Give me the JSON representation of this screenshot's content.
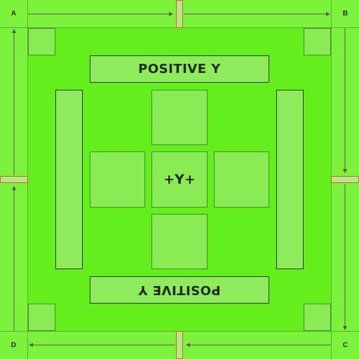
{
  "corners": {
    "a": "A",
    "b": "B",
    "c": "C",
    "d": "D"
  },
  "banner_top": "POSITIVE Y",
  "banner_bottom": "POSITIVE Y",
  "center_label": "+Y+",
  "colors": {
    "background": "#65ee1d",
    "frame": "#7cf23c",
    "tile": "#89ec55",
    "notch_border": "#d2602a",
    "arrow": "#5a5a5a"
  }
}
